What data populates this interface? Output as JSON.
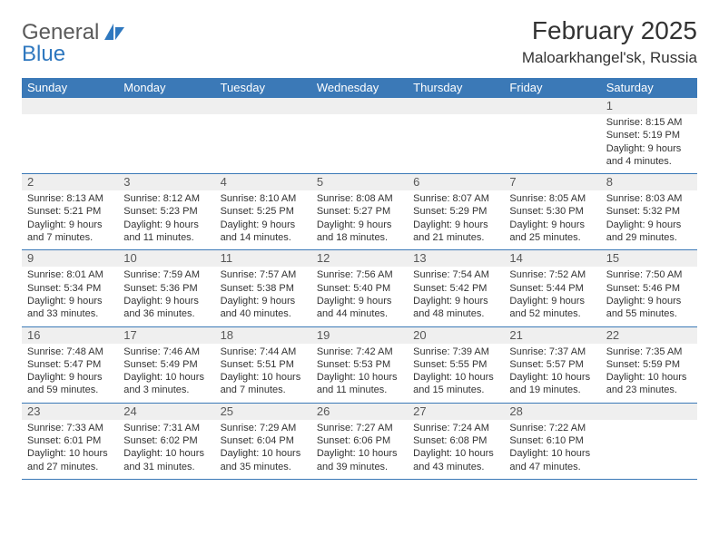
{
  "brand": {
    "part1": "General",
    "part2": "Blue"
  },
  "title": "February 2025",
  "location": "Maloarkhangel'sk, Russia",
  "colors": {
    "header_bar": "#3b79b7",
    "day_number_bg": "#efefef",
    "text": "#333333",
    "logo_gray": "#5a5a5a",
    "logo_blue": "#2f78bf",
    "row_border": "#3b79b7"
  },
  "weekdays": [
    "Sunday",
    "Monday",
    "Tuesday",
    "Wednesday",
    "Thursday",
    "Friday",
    "Saturday"
  ],
  "weeks": [
    [
      {
        "n": "",
        "lines": []
      },
      {
        "n": "",
        "lines": []
      },
      {
        "n": "",
        "lines": []
      },
      {
        "n": "",
        "lines": []
      },
      {
        "n": "",
        "lines": []
      },
      {
        "n": "",
        "lines": []
      },
      {
        "n": "1",
        "lines": [
          "Sunrise: 8:15 AM",
          "Sunset: 5:19 PM",
          "Daylight: 9 hours",
          "and 4 minutes."
        ]
      }
    ],
    [
      {
        "n": "2",
        "lines": [
          "Sunrise: 8:13 AM",
          "Sunset: 5:21 PM",
          "Daylight: 9 hours",
          "and 7 minutes."
        ]
      },
      {
        "n": "3",
        "lines": [
          "Sunrise: 8:12 AM",
          "Sunset: 5:23 PM",
          "Daylight: 9 hours",
          "and 11 minutes."
        ]
      },
      {
        "n": "4",
        "lines": [
          "Sunrise: 8:10 AM",
          "Sunset: 5:25 PM",
          "Daylight: 9 hours",
          "and 14 minutes."
        ]
      },
      {
        "n": "5",
        "lines": [
          "Sunrise: 8:08 AM",
          "Sunset: 5:27 PM",
          "Daylight: 9 hours",
          "and 18 minutes."
        ]
      },
      {
        "n": "6",
        "lines": [
          "Sunrise: 8:07 AM",
          "Sunset: 5:29 PM",
          "Daylight: 9 hours",
          "and 21 minutes."
        ]
      },
      {
        "n": "7",
        "lines": [
          "Sunrise: 8:05 AM",
          "Sunset: 5:30 PM",
          "Daylight: 9 hours",
          "and 25 minutes."
        ]
      },
      {
        "n": "8",
        "lines": [
          "Sunrise: 8:03 AM",
          "Sunset: 5:32 PM",
          "Daylight: 9 hours",
          "and 29 minutes."
        ]
      }
    ],
    [
      {
        "n": "9",
        "lines": [
          "Sunrise: 8:01 AM",
          "Sunset: 5:34 PM",
          "Daylight: 9 hours",
          "and 33 minutes."
        ]
      },
      {
        "n": "10",
        "lines": [
          "Sunrise: 7:59 AM",
          "Sunset: 5:36 PM",
          "Daylight: 9 hours",
          "and 36 minutes."
        ]
      },
      {
        "n": "11",
        "lines": [
          "Sunrise: 7:57 AM",
          "Sunset: 5:38 PM",
          "Daylight: 9 hours",
          "and 40 minutes."
        ]
      },
      {
        "n": "12",
        "lines": [
          "Sunrise: 7:56 AM",
          "Sunset: 5:40 PM",
          "Daylight: 9 hours",
          "and 44 minutes."
        ]
      },
      {
        "n": "13",
        "lines": [
          "Sunrise: 7:54 AM",
          "Sunset: 5:42 PM",
          "Daylight: 9 hours",
          "and 48 minutes."
        ]
      },
      {
        "n": "14",
        "lines": [
          "Sunrise: 7:52 AM",
          "Sunset: 5:44 PM",
          "Daylight: 9 hours",
          "and 52 minutes."
        ]
      },
      {
        "n": "15",
        "lines": [
          "Sunrise: 7:50 AM",
          "Sunset: 5:46 PM",
          "Daylight: 9 hours",
          "and 55 minutes."
        ]
      }
    ],
    [
      {
        "n": "16",
        "lines": [
          "Sunrise: 7:48 AM",
          "Sunset: 5:47 PM",
          "Daylight: 9 hours",
          "and 59 minutes."
        ]
      },
      {
        "n": "17",
        "lines": [
          "Sunrise: 7:46 AM",
          "Sunset: 5:49 PM",
          "Daylight: 10 hours",
          "and 3 minutes."
        ]
      },
      {
        "n": "18",
        "lines": [
          "Sunrise: 7:44 AM",
          "Sunset: 5:51 PM",
          "Daylight: 10 hours",
          "and 7 minutes."
        ]
      },
      {
        "n": "19",
        "lines": [
          "Sunrise: 7:42 AM",
          "Sunset: 5:53 PM",
          "Daylight: 10 hours",
          "and 11 minutes."
        ]
      },
      {
        "n": "20",
        "lines": [
          "Sunrise: 7:39 AM",
          "Sunset: 5:55 PM",
          "Daylight: 10 hours",
          "and 15 minutes."
        ]
      },
      {
        "n": "21",
        "lines": [
          "Sunrise: 7:37 AM",
          "Sunset: 5:57 PM",
          "Daylight: 10 hours",
          "and 19 minutes."
        ]
      },
      {
        "n": "22",
        "lines": [
          "Sunrise: 7:35 AM",
          "Sunset: 5:59 PM",
          "Daylight: 10 hours",
          "and 23 minutes."
        ]
      }
    ],
    [
      {
        "n": "23",
        "lines": [
          "Sunrise: 7:33 AM",
          "Sunset: 6:01 PM",
          "Daylight: 10 hours",
          "and 27 minutes."
        ]
      },
      {
        "n": "24",
        "lines": [
          "Sunrise: 7:31 AM",
          "Sunset: 6:02 PM",
          "Daylight: 10 hours",
          "and 31 minutes."
        ]
      },
      {
        "n": "25",
        "lines": [
          "Sunrise: 7:29 AM",
          "Sunset: 6:04 PM",
          "Daylight: 10 hours",
          "and 35 minutes."
        ]
      },
      {
        "n": "26",
        "lines": [
          "Sunrise: 7:27 AM",
          "Sunset: 6:06 PM",
          "Daylight: 10 hours",
          "and 39 minutes."
        ]
      },
      {
        "n": "27",
        "lines": [
          "Sunrise: 7:24 AM",
          "Sunset: 6:08 PM",
          "Daylight: 10 hours",
          "and 43 minutes."
        ]
      },
      {
        "n": "28",
        "lines": [
          "Sunrise: 7:22 AM",
          "Sunset: 6:10 PM",
          "Daylight: 10 hours",
          "and 47 minutes."
        ]
      },
      {
        "n": "",
        "lines": []
      }
    ]
  ]
}
